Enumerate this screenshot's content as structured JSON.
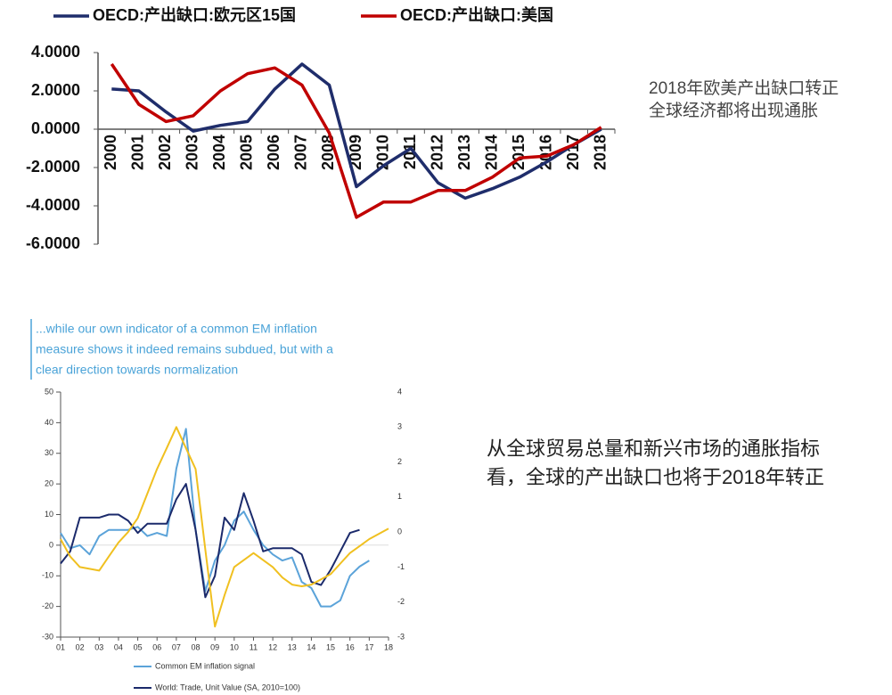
{
  "chart_data": [
    {
      "type": "line",
      "categories": [
        "2000",
        "2001",
        "2002",
        "2003",
        "2004",
        "2005",
        "2006",
        "2007",
        "2008",
        "2009",
        "2010",
        "2011",
        "2012",
        "2013",
        "2014",
        "2015",
        "2016",
        "2017",
        "2018"
      ],
      "series": [
        {
          "name": "OECD:产出缺口:欧元区15国",
          "color": "#1f2d6b",
          "values": [
            2.1,
            2.0,
            0.9,
            -0.1,
            0.2,
            0.4,
            2.1,
            3.4,
            2.3,
            -3.0,
            -1.9,
            -1.0,
            -2.8,
            -3.6,
            -3.1,
            -2.5,
            -1.7,
            -0.8,
            0.0
          ]
        },
        {
          "name": "OECD:产出缺口:美国",
          "color": "#c00000",
          "values": [
            3.4,
            1.3,
            0.4,
            0.7,
            2.0,
            2.9,
            3.2,
            2.3,
            -0.2,
            -4.6,
            -3.8,
            -3.8,
            -3.2,
            -3.2,
            -2.5,
            -1.5,
            -1.4,
            -0.8,
            0.1
          ]
        }
      ],
      "ylim": [
        -6,
        4
      ],
      "yticks": [
        {
          "value": 4,
          "label": "4.0000"
        },
        {
          "value": 2,
          "label": "2.0000"
        },
        {
          "value": 0,
          "label": "0.0000"
        },
        {
          "value": -2,
          "label": "-2.0000"
        },
        {
          "value": -4,
          "label": "-4.0000"
        },
        {
          "value": -6,
          "label": "-6.0000"
        }
      ],
      "annotations": [
        "2018年欧美产出缺口转正",
        "全球经济都将出现通胀"
      ]
    },
    {
      "type": "line",
      "subtitle": [
        "...while our own indicator of a common EM inflation",
        "measure shows it indeed remains subdued, but with a",
        "clear direction towards normalization"
      ],
      "x": [
        2001,
        2001.5,
        2002,
        2002.5,
        2003,
        2003.5,
        2004,
        2004.5,
        2005,
        2005.5,
        2006,
        2006.5,
        2007,
        2007.5,
        2008,
        2008.5,
        2009,
        2009.5,
        2010,
        2010.5,
        2011,
        2011.5,
        2012,
        2012.5,
        2013,
        2013.5,
        2014,
        2014.5,
        2015,
        2015.5,
        2016,
        2016.5,
        2017,
        2017.5,
        2018
      ],
      "series": [
        {
          "name": "Common EM inflation signal",
          "color": "#5ba3d9",
          "values": [
            4,
            -1,
            0,
            -3,
            3,
            5,
            5,
            5,
            6,
            3,
            4,
            3,
            25,
            38,
            5,
            -15,
            -5,
            0,
            8,
            11,
            5,
            0,
            -3,
            -5,
            -4,
            -12,
            -14,
            -20,
            -20,
            -18,
            -10,
            -7,
            -5,
            null,
            null
          ]
        },
        {
          "name": "World: Trade, Unit Value (SA, 2010=100)",
          "color": "#1b2a6b",
          "values": [
            -6,
            -2,
            9,
            9,
            9,
            10,
            10,
            8,
            4,
            7,
            7,
            7,
            15,
            20,
            5,
            -17,
            -10,
            9,
            5,
            17,
            8,
            -2,
            -1,
            -1,
            -1,
            -3,
            -12,
            -13,
            -8,
            -2,
            4,
            5,
            null,
            null,
            null
          ]
        },
        {
          "color": "#f0c020",
          "axis": "y2",
          "values": [
            -0.2,
            -0.7,
            -1.0,
            -1.05,
            -1.1,
            -0.7,
            -0.3,
            0.0,
            0.4,
            1.1,
            1.8,
            2.4,
            3.0,
            2.4,
            1.8,
            -0.5,
            -2.7,
            -1.8,
            -1.0,
            -0.8,
            -0.6,
            -0.8,
            -1.0,
            -1.3,
            -1.5,
            -1.55,
            -1.5,
            -1.35,
            -1.2,
            -0.9,
            -0.6,
            -0.4,
            -0.2,
            -0.05,
            0.1
          ]
        }
      ],
      "xlim": [
        2001,
        2018
      ],
      "xticks": [
        {
          "value": 2001,
          "label": "01"
        },
        {
          "value": 2002,
          "label": "02"
        },
        {
          "value": 2003,
          "label": "03"
        },
        {
          "value": 2004,
          "label": "04"
        },
        {
          "value": 2005,
          "label": "05"
        },
        {
          "value": 2006,
          "label": "06"
        },
        {
          "value": 2007,
          "label": "07"
        },
        {
          "value": 2008,
          "label": "08"
        },
        {
          "value": 2009,
          "label": "09"
        },
        {
          "value": 2010,
          "label": "10"
        },
        {
          "value": 2011,
          "label": "11"
        },
        {
          "value": 2012,
          "label": "12"
        },
        {
          "value": 2013,
          "label": "13"
        },
        {
          "value": 2014,
          "label": "14"
        },
        {
          "value": 2015,
          "label": "15"
        },
        {
          "value": 2016,
          "label": "16"
        },
        {
          "value": 2017,
          "label": "17"
        },
        {
          "value": 2018,
          "label": "18"
        }
      ],
      "ylim": [
        -30,
        50
      ],
      "yticks": [
        -30,
        -20,
        -10,
        0,
        10,
        20,
        30,
        40,
        50
      ],
      "y2lim": [
        -3,
        4
      ],
      "y2ticks": [
        -3,
        -2,
        -1,
        0,
        1,
        2,
        3,
        4
      ],
      "annotations": [
        "从全球贸易总量和新兴市场的通胀指标",
        "看，全球的产出缺口也将于2018年转正"
      ]
    }
  ]
}
